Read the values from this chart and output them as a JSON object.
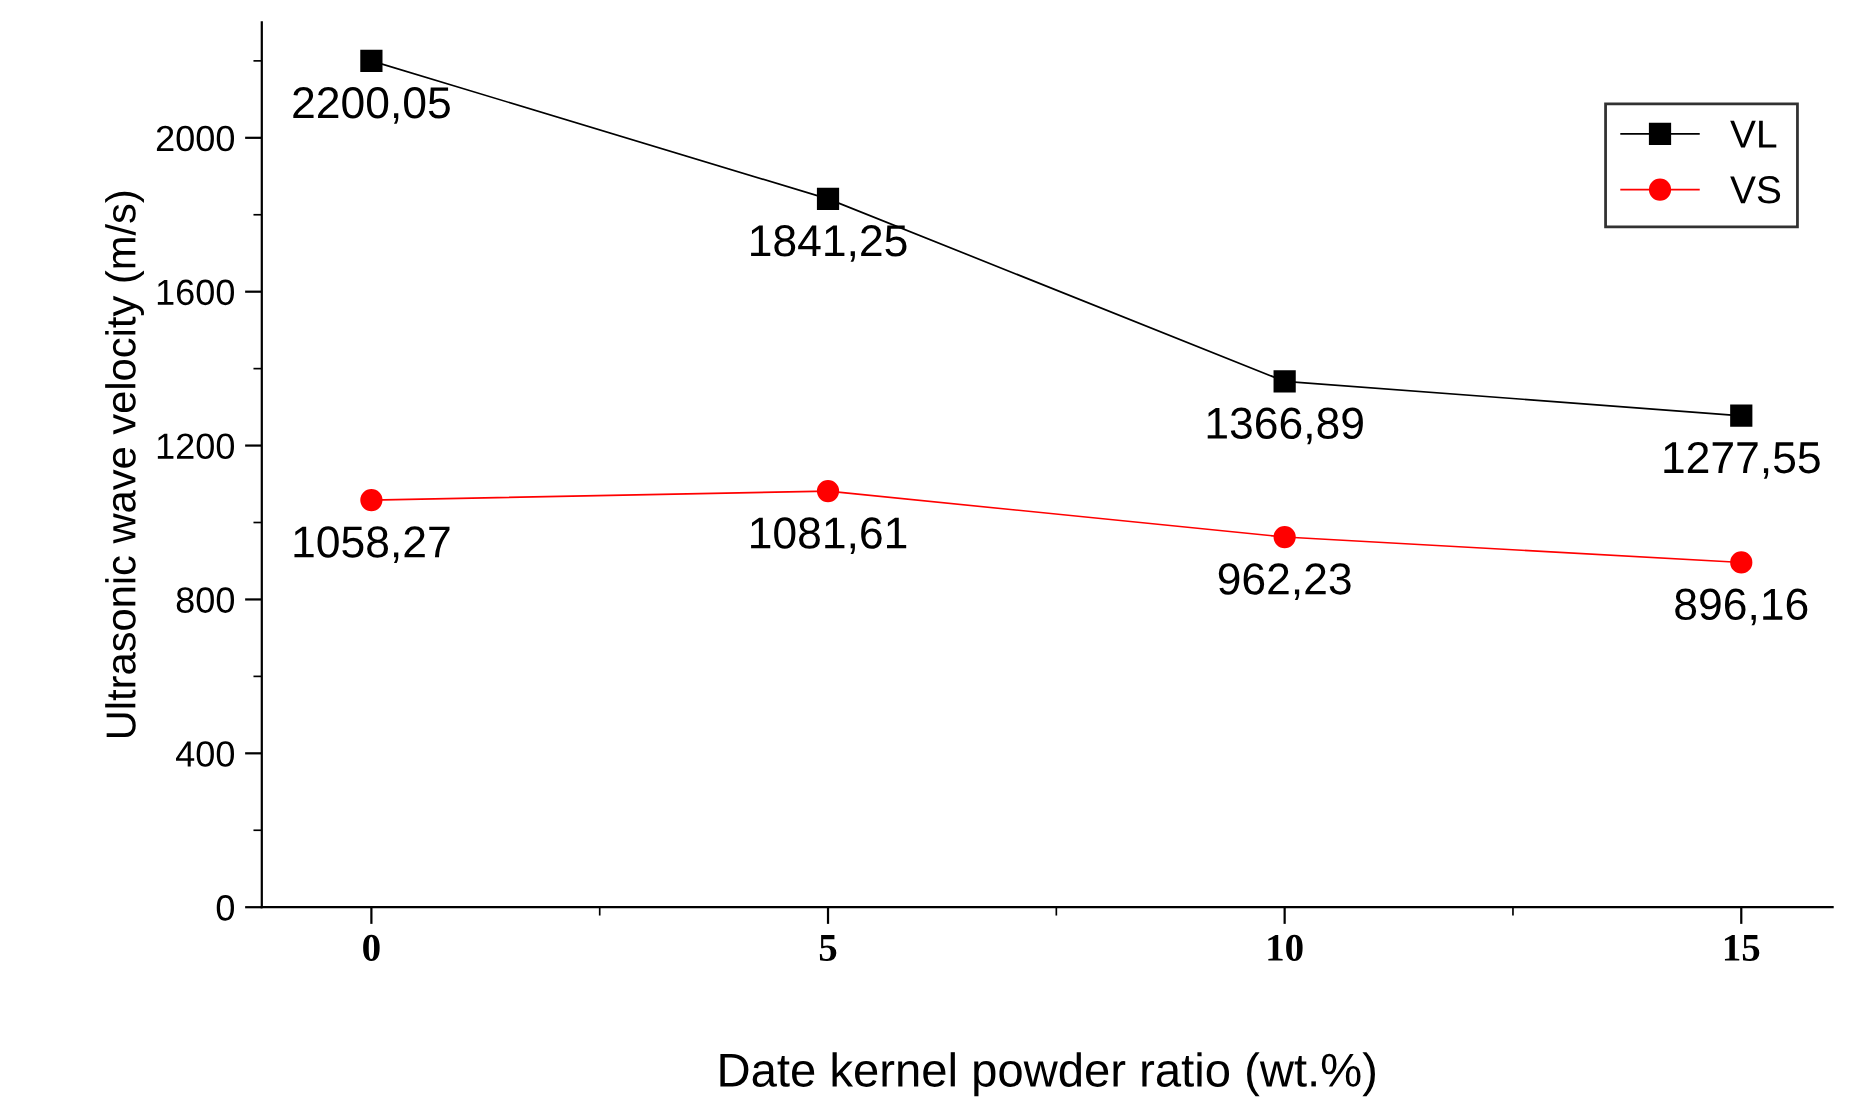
{
  "chart_data": {
    "type": "line",
    "xlabel": "Date kernel powder ratio (wt.%)",
    "ylabel": "Ultrasonic wave velocity (m/s)",
    "x": [
      0,
      5,
      10,
      15
    ],
    "series": [
      {
        "name": "VL",
        "color": "#000000",
        "marker": "square",
        "values": [
          2200.05,
          1841.25,
          1366.89,
          1277.55
        ],
        "value_labels": [
          "2200,05",
          "1841,25",
          "1366,89",
          "1277,55"
        ]
      },
      {
        "name": "VS",
        "color": "#ff0000",
        "marker": "circle",
        "values": [
          1058.27,
          1081.61,
          962.23,
          896.16
        ],
        "value_labels": [
          "1058,27",
          "1081,61",
          "962,23",
          "896,16"
        ]
      }
    ],
    "xlim": [
      -1.2,
      16
    ],
    "xticks": [
      0,
      5,
      10,
      15
    ],
    "ylim": [
      0,
      2300
    ],
    "yticks": [
      0,
      400,
      800,
      1200,
      1600,
      2000
    ],
    "grid": false,
    "legend": "top right",
    "line_style": "solid"
  }
}
